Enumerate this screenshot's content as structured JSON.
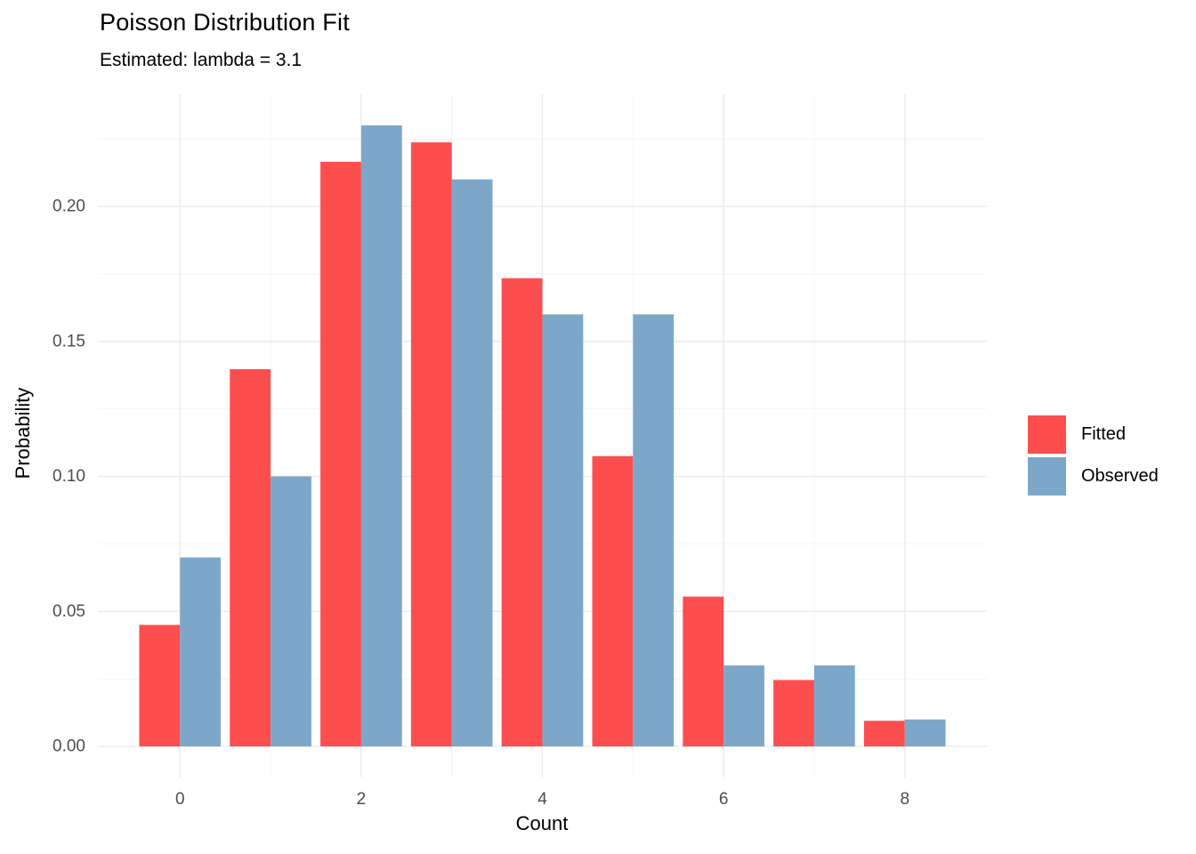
{
  "chart": {
    "title": "Poisson Distribution Fit",
    "subtitle": "Estimated: lambda = 3.1",
    "xlabel": "Count",
    "ylabel": "Probability"
  },
  "chart_data": {
    "type": "bar",
    "grouping": "dodged",
    "title": "Poisson Distribution Fit",
    "subtitle": "Estimated: lambda = 3.1",
    "xlabel": "Count",
    "ylabel": "Probability",
    "categories": [
      0,
      1,
      2,
      3,
      4,
      5,
      6,
      7,
      8
    ],
    "series": [
      {
        "name": "Fitted",
        "color": "#FC4E4E",
        "values": [
          0.045,
          0.1397,
          0.2165,
          0.2237,
          0.1734,
          0.1075,
          0.0555,
          0.0246,
          0.0095
        ]
      },
      {
        "name": "Observed",
        "color": "#7DA7C9",
        "values": [
          0.07,
          0.1,
          0.23,
          0.21,
          0.16,
          0.16,
          0.03,
          0.03,
          0.01
        ]
      }
    ],
    "bar_width": 0.45,
    "xlim": [
      -0.906,
      8.906
    ],
    "ylim": [
      -0.0115,
      0.2415
    ],
    "x_ticks": [
      0,
      2,
      4,
      6,
      8
    ],
    "x_tick_labels": [
      "0",
      "2",
      "4",
      "6",
      "8"
    ],
    "x_minor_ticks": [
      1,
      3,
      5,
      7
    ],
    "y_ticks": [
      0.0,
      0.05,
      0.1,
      0.15,
      0.2
    ],
    "y_tick_labels": [
      "0.00",
      "0.05",
      "0.10",
      "0.15",
      "0.20"
    ],
    "y_minor_ticks": [
      0.025,
      0.075,
      0.125,
      0.175,
      0.225
    ],
    "grid": true,
    "grid_major_color": "#EBEBEB",
    "grid_minor_color": "#F4F4F4",
    "tick_label_color": "#4D4D4D",
    "legend_position": "right"
  },
  "legend": {
    "entries": [
      {
        "label": "Fitted",
        "color": "#FC4E4E"
      },
      {
        "label": "Observed",
        "color": "#7DA7C9"
      }
    ]
  }
}
